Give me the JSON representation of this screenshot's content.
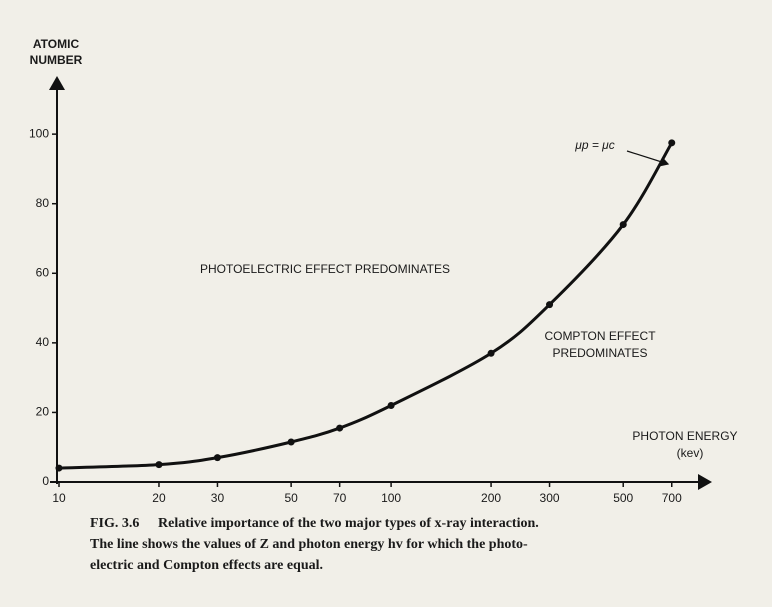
{
  "chart_data": {
    "type": "line",
    "y_label_lines": [
      "ATOMIC",
      "NUMBER"
    ],
    "x_label_lines": [
      "PHOTON ENERGY",
      "(kev)"
    ],
    "x": [
      10,
      20,
      30,
      50,
      70,
      100,
      200,
      300,
      500,
      700
    ],
    "series": [
      {
        "name": "μp = μc",
        "color": "#111111",
        "values": [
          4,
          5,
          7,
          11.5,
          15.5,
          22,
          37,
          51,
          74,
          97.5
        ]
      }
    ],
    "xscale": "log",
    "xlim": [
      10,
      900
    ],
    "xticks": [
      10,
      20,
      30,
      50,
      70,
      100,
      200,
      300,
      500,
      700
    ],
    "ylim": [
      0,
      117
    ],
    "yticks": [
      0,
      20,
      40,
      60,
      80,
      100
    ],
    "annotations": [
      "PHOTOELECTRIC EFFECT PREDOMINATES",
      "COMPTON EFFECT",
      "PREDOMINATES"
    ],
    "caption": {
      "label": "FIG. 3.6",
      "lines": [
        "Relative importance of the two major types of x-ray interaction.",
        "The line shows the values of Z and photon energy hv for which the photo-",
        "electric and Compton effects are equal."
      ]
    }
  }
}
